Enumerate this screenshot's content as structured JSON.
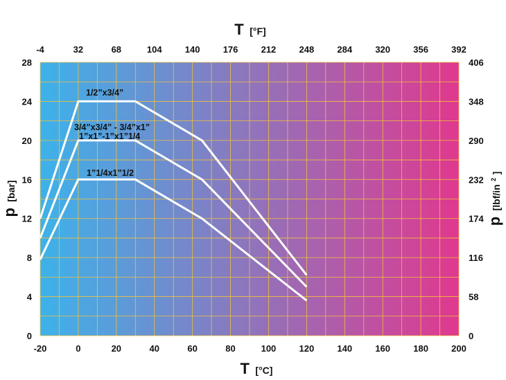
{
  "chart_data": {
    "type": "line",
    "background_gradient": {
      "from": "#3db2ea",
      "to": "#e0388f"
    },
    "grid": true,
    "grid_color": "#f2c13a",
    "line_color": "#ffffff",
    "x_axis_bottom": {
      "symbol": "T",
      "unit": "[°C]",
      "range": [
        -20,
        200
      ],
      "ticks": [
        "-20",
        "0",
        "20",
        "40",
        "60",
        "80",
        "100",
        "120",
        "140",
        "160",
        "180",
        "200"
      ]
    },
    "x_axis_top": {
      "symbol": "T",
      "unit": "[°F]",
      "ticks": [
        "-4",
        "32",
        "68",
        "104",
        "140",
        "176",
        "212",
        "248",
        "284",
        "320",
        "356",
        "392"
      ]
    },
    "y_axis_left": {
      "symbol": "p",
      "unit": "[bar]",
      "range": [
        0,
        28
      ],
      "ticks": [
        "0",
        "4",
        "8",
        "12",
        "16",
        "20",
        "24",
        "28"
      ]
    },
    "y_axis_right": {
      "symbol": "p",
      "unit_prefix": "[lbf/in",
      "unit_sup": "2",
      "unit_suffix": "]",
      "ticks": [
        "0",
        "58",
        "116",
        "174",
        "232",
        "290",
        "348",
        "406"
      ]
    },
    "series": [
      {
        "name": "1/2”x3/4”",
        "points": [
          [
            -20,
            12
          ],
          [
            0,
            24
          ],
          [
            30,
            24
          ],
          [
            65,
            20
          ],
          [
            120,
            6.2
          ]
        ]
      },
      {
        "name": "3/4”x3/4” - 3/4”x1”",
        "name_line2": "1”x1”-1”x1”1/4",
        "points": [
          [
            -20,
            10
          ],
          [
            0,
            20
          ],
          [
            30,
            20
          ],
          [
            65,
            16
          ],
          [
            120,
            5
          ]
        ]
      },
      {
        "name": "1”1/4x1”1/2",
        "points": [
          [
            -20,
            7.8
          ],
          [
            0,
            16
          ],
          [
            30,
            16
          ],
          [
            65,
            12
          ],
          [
            120,
            3.6
          ]
        ]
      }
    ]
  }
}
